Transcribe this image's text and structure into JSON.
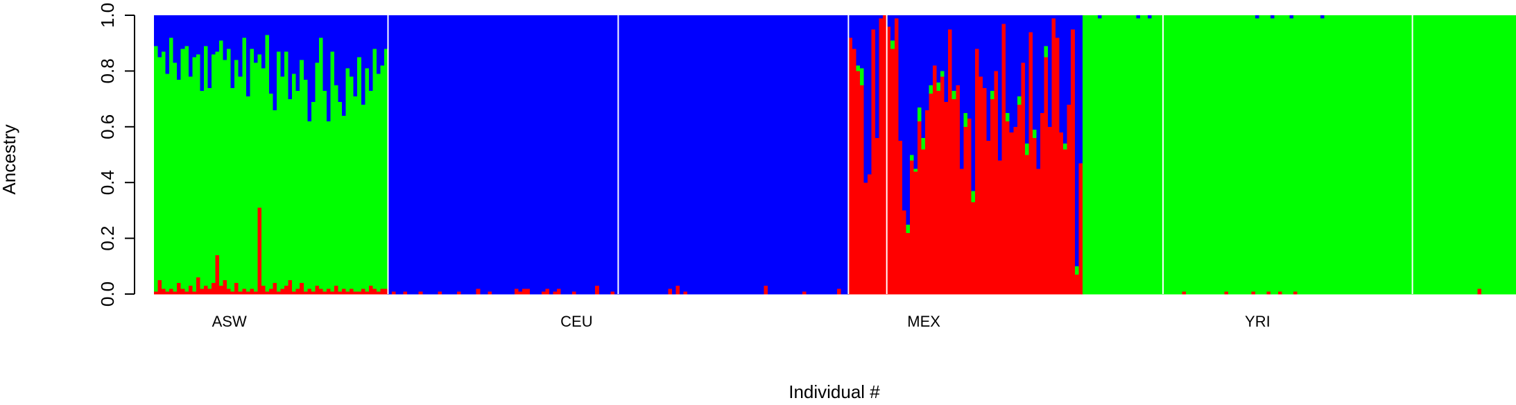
{
  "chart_data": {
    "type": "bar",
    "stacked": true,
    "xlabel": "Individual #",
    "ylabel": "Ancestry",
    "ylim": [
      0,
      1
    ],
    "yticks": [
      "0.0",
      "0.2",
      "0.4",
      "0.6",
      "0.8",
      "1.0"
    ],
    "grid": false,
    "legend": "none",
    "series": [
      {
        "key": "red",
        "color": "#ff0000"
      },
      {
        "key": "green",
        "color": "#00ff00"
      },
      {
        "key": "blue",
        "color": "#0000ff"
      }
    ],
    "separator_color": "#ffffff",
    "groups": [
      {
        "label": "ASW",
        "n": 61,
        "separator_after": true,
        "red": [
          0.01,
          0.05,
          0.02,
          0.01,
          0.02,
          0.01,
          0.04,
          0.02,
          0.01,
          0.03,
          0.01,
          0.06,
          0.02,
          0.03,
          0.02,
          0.04,
          0.14,
          0.03,
          0.05,
          0.02,
          0.01,
          0.04,
          0.01,
          0.02,
          0.01,
          0.02,
          0.01,
          0.31,
          0.03,
          0.01,
          0.02,
          0.04,
          0.01,
          0.02,
          0.03,
          0.05,
          0.01,
          0.02,
          0.04,
          0.01,
          0.02,
          0.01,
          0.03,
          0.02,
          0.01,
          0.02,
          0.01,
          0.03,
          0.01,
          0.02,
          0.01,
          0.02,
          0.01,
          0.01,
          0.02,
          0.01,
          0.03,
          0.02,
          0.01,
          0.02,
          0.02
        ],
        "green": [
          0.88,
          0.8,
          0.85,
          0.78,
          0.9,
          0.82,
          0.73,
          0.86,
          0.88,
          0.75,
          0.84,
          0.8,
          0.71,
          0.86,
          0.72,
          0.82,
          0.73,
          0.88,
          0.79,
          0.86,
          0.73,
          0.8,
          0.77,
          0.9,
          0.7,
          0.86,
          0.82,
          0.55,
          0.78,
          0.92,
          0.7,
          0.62,
          0.86,
          0.76,
          0.84,
          0.65,
          0.78,
          0.71,
          0.8,
          0.76,
          0.6,
          0.68,
          0.8,
          0.9,
          0.72,
          0.6,
          0.86,
          0.72,
          0.68,
          0.62,
          0.8,
          0.76,
          0.7,
          0.84,
          0.66,
          0.8,
          0.7,
          0.86,
          0.78,
          0.8,
          0.86
        ],
        "blue": null
      },
      {
        "label": "CEU",
        "n": 120,
        "separator_after": true,
        "red": [
          0,
          0.01,
          0,
          0,
          0.01,
          0,
          0,
          0,
          0.01,
          0,
          0,
          0,
          0,
          0.01,
          0,
          0,
          0,
          0,
          0.01,
          0,
          0,
          0,
          0,
          0.02,
          0,
          0,
          0.01,
          0,
          0,
          0,
          0,
          0,
          0,
          0.02,
          0.01,
          0.02,
          0.02,
          0,
          0,
          0,
          0.01,
          0.02,
          0,
          0.01,
          0.02,
          0,
          0,
          0,
          0.01,
          0,
          0,
          0,
          0,
          0,
          0.03,
          0,
          0,
          0,
          0.01,
          0,
          0,
          0,
          0,
          0,
          0,
          0,
          0,
          0,
          0,
          0,
          0,
          0,
          0,
          0.02,
          0,
          0.03,
          0,
          0.01,
          0,
          0,
          0,
          0,
          0,
          0,
          0,
          0,
          0,
          0,
          0,
          0,
          0,
          0,
          0,
          0,
          0,
          0,
          0,
          0,
          0.03,
          0,
          0,
          0,
          0,
          0,
          0,
          0,
          0,
          0,
          0.01,
          0,
          0,
          0,
          0,
          0,
          0,
          0,
          0,
          0.02,
          0,
          0
        ],
        "green": [
          0,
          0,
          0,
          0,
          0,
          0,
          0,
          0,
          0,
          0,
          0,
          0,
          0,
          0,
          0,
          0,
          0,
          0,
          0,
          0,
          0,
          0,
          0,
          0,
          0,
          0,
          0,
          0,
          0,
          0,
          0,
          0,
          0,
          0,
          0,
          0,
          0,
          0,
          0,
          0,
          0,
          0,
          0,
          0,
          0,
          0,
          0,
          0,
          0,
          0,
          0,
          0,
          0,
          0,
          0,
          0,
          0,
          0,
          0,
          0,
          0,
          0,
          0,
          0,
          0,
          0,
          0,
          0,
          0,
          0,
          0,
          0,
          0,
          0,
          0,
          0,
          0,
          0,
          0,
          0,
          0,
          0,
          0,
          0,
          0,
          0,
          0,
          0,
          0,
          0,
          0,
          0,
          0,
          0,
          0,
          0,
          0,
          0,
          0,
          0,
          0,
          0,
          0,
          0,
          0,
          0,
          0,
          0,
          0,
          0,
          0,
          0,
          0,
          0,
          0,
          0,
          0,
          0,
          0,
          0
        ],
        "blue": null
      },
      {
        "label": "MEX",
        "n": 61,
        "separator_after": false,
        "red": [
          0.92,
          0.88,
          0.8,
          0.75,
          0.4,
          0.43,
          0.95,
          0.56,
          0.99,
          1.0,
          0.96,
          0.88,
          0.99,
          0.55,
          0.3,
          0.22,
          0.48,
          0.44,
          0.62,
          0.52,
          0.66,
          0.72,
          0.82,
          0.73,
          0.78,
          0.69,
          0.95,
          0.7,
          0.75,
          0.45,
          0.6,
          0.63,
          0.33,
          0.88,
          0.78,
          0.74,
          0.55,
          0.7,
          0.8,
          0.48,
          0.97,
          0.62,
          0.58,
          0.6,
          0.68,
          0.83,
          0.5,
          0.94,
          0.56,
          0.45,
          0.65,
          0.85,
          0.6,
          0.99,
          0.92,
          0.58,
          0.52,
          0.68,
          0.95,
          0.07,
          0.47
        ],
        "green": [
          0,
          0,
          0.02,
          0.06,
          0,
          0,
          0,
          0,
          0,
          0,
          0,
          0.03,
          0,
          0,
          0,
          0.03,
          0.02,
          0.01,
          0.05,
          0.04,
          0,
          0.03,
          0,
          0.03,
          0.02,
          0,
          0,
          0.03,
          0,
          0,
          0.05,
          0,
          0.04,
          0,
          0,
          0,
          0,
          0.03,
          0,
          0,
          0,
          0.03,
          0,
          0,
          0.03,
          0,
          0.04,
          0,
          0.03,
          0,
          0,
          0.04,
          0,
          0,
          0,
          0,
          0.02,
          0,
          0,
          0.03,
          0
        ],
        "blue": null
      },
      {
        "label": "YRI",
        "n": 113,
        "separator_after": false,
        "red": [
          0,
          0,
          0,
          0,
          0,
          0,
          0,
          0,
          0,
          0,
          0,
          0,
          0,
          0,
          0,
          0,
          0,
          0,
          0,
          0,
          0,
          0,
          0,
          0,
          0,
          0,
          0.01,
          0,
          0,
          0,
          0,
          0,
          0,
          0,
          0,
          0,
          0,
          0.01,
          0,
          0,
          0,
          0,
          0,
          0,
          0.01,
          0,
          0,
          0,
          0.01,
          0,
          0,
          0.01,
          0,
          0,
          0,
          0.01,
          0,
          0,
          0,
          0,
          0,
          0,
          0,
          0,
          0,
          0,
          0,
          0,
          0,
          0,
          0,
          0,
          0,
          0,
          0,
          0,
          0,
          0,
          0,
          0,
          0,
          0,
          0,
          0,
          0,
          0,
          0,
          0,
          0,
          0,
          0,
          0,
          0,
          0,
          0,
          0,
          0,
          0,
          0,
          0,
          0,
          0,
          0,
          0.02,
          0,
          0,
          0,
          0,
          0,
          0,
          0,
          0,
          0
        ],
        "green": null,
        "blue": [
          0,
          0,
          0,
          0,
          0.01,
          0,
          0,
          0,
          0,
          0,
          0,
          0,
          0,
          0,
          0.01,
          0,
          0,
          0.01,
          0,
          0,
          0,
          0,
          0,
          0,
          0,
          0,
          0,
          0,
          0,
          0,
          0,
          0,
          0,
          0,
          0,
          0,
          0,
          0,
          0,
          0,
          0,
          0,
          0,
          0,
          0,
          0.01,
          0,
          0,
          0,
          0.01,
          0,
          0,
          0,
          0,
          0.01,
          0,
          0,
          0,
          0,
          0,
          0,
          0,
          0.01,
          0,
          0,
          0,
          0,
          0,
          0,
          0,
          0,
          0,
          0,
          0,
          0,
          0,
          0,
          0,
          0,
          0,
          0,
          0,
          0,
          0,
          0,
          0,
          0,
          0,
          0,
          0,
          0,
          0,
          0,
          0,
          0,
          0,
          0,
          0,
          0,
          0,
          0,
          0,
          0,
          0,
          0,
          0,
          0,
          0,
          0,
          0,
          0,
          0,
          0
        ]
      }
    ],
    "extra_separators": [
      {
        "group": "CEU",
        "after_index": 59
      },
      {
        "group": "MEX",
        "after_index": 9
      },
      {
        "group": "YRI",
        "after_index": 20
      },
      {
        "group": "YRI",
        "after_index": 85
      }
    ]
  }
}
